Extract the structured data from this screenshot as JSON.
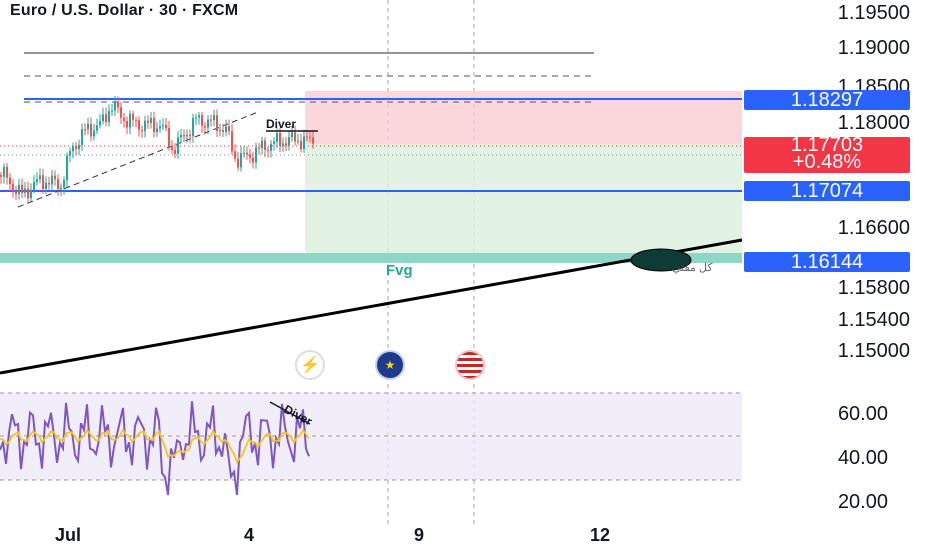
{
  "header": {
    "title": "Euro / U.S. Dollar · 30 · FXCM"
  },
  "price_axis": {
    "labels": [
      "1.19500",
      "1.19000",
      "1.18500",
      "1.18000",
      "1.16600",
      "1.15800",
      "1.15400",
      "1.15000"
    ]
  },
  "price_tags": {
    "upper_level": "1.18297",
    "current_price": "1.17703",
    "change_pct": "+0.48%",
    "mid_level": "1.17074",
    "lower_level": "1.16144"
  },
  "annotations": {
    "fvg": "Fvg",
    "diver_price": "Diver",
    "diver_rsi": "Diver",
    "arabic_note": "كل مفتي"
  },
  "rsi_axis": {
    "labels": [
      "60.00",
      "40.00",
      "20.00"
    ]
  },
  "time_axis": {
    "labels": [
      "Jul",
      "4",
      "9",
      "12"
    ]
  },
  "events": [
    {
      "name": "lightning-icon",
      "glyph": "⚡",
      "color": "#9c27b0"
    },
    {
      "name": "eu-flag-icon",
      "glyph": "★",
      "color": "#1e3a8a"
    },
    {
      "name": "us-flag-icon",
      "glyph": "▤",
      "color": "#c62828"
    }
  ],
  "colors": {
    "accent_blue": "#2962ff",
    "down_red": "#f23645",
    "up_green": "#26a69a",
    "rsi_purple": "#7e57c2",
    "rsi_signal": "#f5c518"
  }
}
